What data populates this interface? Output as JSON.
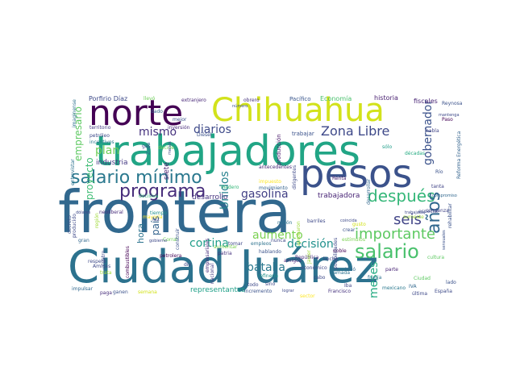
{
  "word_cloud": {
    "words": [
      {
        "text": "frontera",
        "color": "#31688e"
      },
      {
        "text": "Ciudad Juárez",
        "color": "#2c728e"
      },
      {
        "text": "trabajadores",
        "color": "#21a585"
      },
      {
        "text": "pesos",
        "color": "#3b528b"
      },
      {
        "text": "norte",
        "color": "#440154"
      },
      {
        "text": "Chihuahua",
        "color": "#d2e21b"
      },
      {
        "text": "salario mínimo",
        "color": "#2a788e"
      },
      {
        "text": "programa",
        "color": "#472d7b"
      },
      {
        "text": "salario",
        "color": "#4ac16d"
      },
      {
        "text": "después",
        "color": "#35b779"
      },
      {
        "text": "años",
        "color": "#31688e"
      },
      {
        "text": "Zona Libre",
        "color": "#3e4989"
      },
      {
        "text": "seis",
        "color": "#414487"
      },
      {
        "text": "importante",
        "color": "#5ec962"
      },
      {
        "text": "gobernador",
        "color": "#3b528b"
      },
      {
        "text": "plan",
        "color": "#6ece58"
      },
      {
        "text": "diarios",
        "color": "#3e4a89"
      },
      {
        "text": "mismo",
        "color": "#46327e"
      },
      {
        "text": "Unidos",
        "color": "#26828e"
      },
      {
        "text": "cortina",
        "color": "#1f9e89"
      },
      {
        "text": "gasolina",
        "color": "#424086"
      },
      {
        "text": "aumento",
        "color": "#7ad151"
      },
      {
        "text": "decisión",
        "color": "#21918c"
      },
      {
        "text": "batalla",
        "color": "#2a788e"
      },
      {
        "text": "meses",
        "color": "#25ab82"
      },
      {
        "text": "empresario",
        "color": "#5ec962"
      },
      {
        "text": "proyecto",
        "color": "#3dbc74"
      },
      {
        "text": "industria",
        "color": "#443983"
      },
      {
        "text": "hora",
        "color": "#2c738e"
      },
      {
        "text": "país",
        "color": "#33638d"
      },
      {
        "text": "siete",
        "color": "#481c6e"
      },
      {
        "text": "trabajadora",
        "color": "#482576"
      },
      {
        "text": "desarrollo",
        "color": "#463480"
      },
      {
        "text": "representantes",
        "color": "#1fa088"
      },
      {
        "text": "Porfirio Díaz",
        "color": "#3e4a89"
      },
      {
        "text": "llevó",
        "color": "#6ece58"
      },
      {
        "text": "extranjero",
        "color": "#482878"
      },
      {
        "text": "obrero",
        "color": "#46327e"
      },
      {
        "text": "Pacífico",
        "color": "#39568c"
      },
      {
        "text": "Economía",
        "color": "#4ac16d"
      },
      {
        "text": "historia",
        "color": "#481f70"
      },
      {
        "text": "fiscales",
        "color": "#482475"
      },
      {
        "text": "Reynosa",
        "color": "#3b528b"
      },
      {
        "text": "Paso",
        "color": "#440154"
      },
      {
        "text": "habla",
        "color": "#414487"
      },
      {
        "text": "imaginense",
        "color": "#2d708e"
      },
      {
        "text": "territorio",
        "color": "#443a83"
      },
      {
        "text": "inversión",
        "color": "#472a7a"
      },
      {
        "text": "Diésel",
        "color": "#3b528b"
      },
      {
        "text": "incentivos",
        "color": "#2a788e"
      },
      {
        "text": "petróleo",
        "color": "#3e4989"
      },
      {
        "text": "entrevistar",
        "color": "#2c728e"
      },
      {
        "text": "producción",
        "color": "#48186a"
      },
      {
        "text": "antecedentes",
        "color": "#482878"
      },
      {
        "text": "trabajar",
        "color": "#3b528b"
      },
      {
        "text": "comienza",
        "color": "#414487"
      },
      {
        "text": "desarrollar",
        "color": "#31688e"
      },
      {
        "text": "Reforma Energética",
        "color": "#33638d"
      },
      {
        "text": "décadas",
        "color": "#25ab82"
      },
      {
        "text": "sólo",
        "color": "#1f9e89"
      },
      {
        "text": "especial",
        "color": "#3e4989"
      },
      {
        "text": "tanta",
        "color": "#414487"
      },
      {
        "text": "República",
        "color": "#472d7b"
      },
      {
        "text": "económico",
        "color": "#3e4989"
      },
      {
        "text": "cultura",
        "color": "#5ec962"
      },
      {
        "text": "gusto",
        "color": "#d2e21b"
      },
      {
        "text": "crear",
        "color": "#3b528b"
      },
      {
        "text": "suroeste",
        "color": "#a0da39"
      },
      {
        "text": "estímulos",
        "color": "#7ad151"
      },
      {
        "text": "Renta",
        "color": "#481f70"
      },
      {
        "text": "impuesto",
        "color": "#fde725"
      },
      {
        "text": "Madero",
        "color": "#35b779"
      },
      {
        "text": "movimiento",
        "color": "#33638d"
      },
      {
        "text": "dirigentes",
        "color": "#3e4989"
      },
      {
        "text": "aprobaron",
        "color": "#a0da39"
      },
      {
        "text": "millón",
        "color": "#2c728e"
      },
      {
        "text": "tocó",
        "color": "#31688e"
      },
      {
        "text": "hecho",
        "color": "#3e4989"
      },
      {
        "text": "llamada",
        "color": "#2c728e"
      },
      {
        "text": "doble",
        "color": "#440154"
      },
      {
        "text": "Iba",
        "color": "#414487"
      },
      {
        "text": "parte",
        "color": "#482475"
      },
      {
        "text": "Ciudad",
        "color": "#5ec962"
      },
      {
        "text": "franja",
        "color": "#2c728e"
      },
      {
        "text": "lado",
        "color": "#3b528b"
      },
      {
        "text": "España",
        "color": "#3e4a89"
      },
      {
        "text": "última",
        "color": "#3e4989"
      },
      {
        "text": "mexicano",
        "color": "#2a788e"
      },
      {
        "text": "Francisco",
        "color": "#46327e"
      },
      {
        "text": "sector",
        "color": "#fde725"
      },
      {
        "text": "incremento",
        "color": "#3b528b"
      },
      {
        "text": "refinería",
        "color": "#20928c"
      },
      {
        "text": "amigos",
        "color": "#482878"
      },
      {
        "text": "empleos",
        "color": "#2c728e"
      },
      {
        "text": "tomar",
        "color": "#3e4989"
      },
      {
        "text": "nacional",
        "color": "#443983"
      },
      {
        "text": "patria",
        "color": "#46327e"
      },
      {
        "text": "aumentar",
        "color": "#7ad151"
      },
      {
        "text": "Corral",
        "color": "#6ece58"
      },
      {
        "text": "petrolera",
        "color": "#440154"
      },
      {
        "text": "mayoría",
        "color": "#fde725"
      },
      {
        "text": "tiempo",
        "color": "#21918c"
      },
      {
        "text": "luz",
        "color": "#3e4989"
      },
      {
        "text": "decreto",
        "color": "#3b528b"
      },
      {
        "text": "región",
        "color": "#a0da39"
      },
      {
        "text": "respeto",
        "color": "#3e4989"
      },
      {
        "text": "Amigas",
        "color": "#3e4989"
      },
      {
        "text": "trata",
        "color": "#a0da39"
      },
      {
        "text": "impulsar",
        "color": "#31688e"
      },
      {
        "text": "paga",
        "color": "#472d7b"
      },
      {
        "text": "ganen",
        "color": "#3b528b"
      },
      {
        "text": "semana",
        "color": "#d2e21b"
      },
      {
        "text": "gran",
        "color": "#31688e"
      },
      {
        "text": "cuatro",
        "color": "#3e4989"
      },
      {
        "text": "combustibles",
        "color": "#440154"
      },
      {
        "text": "construir",
        "color": "#3b528b"
      },
      {
        "text": "empresariales",
        "color": "#472d7b"
      },
      {
        "text": "hablando",
        "color": "#3b528b"
      },
      {
        "text": "nunca",
        "color": "#3e4989"
      },
      {
        "text": "cabo",
        "color": "#3e4989"
      },
      {
        "text": "IVA",
        "color": "#31688e"
      },
      {
        "text": "Río",
        "color": "#3b528b"
      },
      {
        "text": "decide",
        "color": "#6ece58"
      },
      {
        "text": "gas",
        "color": "#3e4989"
      },
      {
        "text": "dado",
        "color": "#31688e"
      },
      {
        "text": "mejor",
        "color": "#3b528b"
      },
      {
        "text": "decisiva",
        "color": "#35b779"
      },
      {
        "text": "Javier",
        "color": "#a0da39"
      },
      {
        "text": "producido",
        "color": "#3e4989"
      },
      {
        "text": "dólares",
        "color": "#3e4989"
      },
      {
        "text": "neoliberal",
        "color": "#472d7b"
      },
      {
        "text": "posibilidades",
        "color": "#3e4989"
      },
      {
        "text": "Zona",
        "color": "#31688e"
      },
      {
        "text": "menos",
        "color": "#3e4989"
      },
      {
        "text": "mantenga",
        "color": "#3e4989"
      },
      {
        "text": "número",
        "color": "#3b528b"
      },
      {
        "text": "coincida",
        "color": "#3e4989"
      },
      {
        "text": "barriles",
        "color": "#3e4989"
      },
      {
        "text": "compromiso",
        "color": "#31688e"
      },
      {
        "text": "trabajador",
        "color": "#3e4989"
      },
      {
        "text": "rehabilitar",
        "color": "#3b528b"
      },
      {
        "text": "sensuales",
        "color": "#3b528b"
      },
      {
        "text": "sino",
        "color": "#3e4989"
      },
      {
        "text": "lograr",
        "color": "#3e4989"
      },
      {
        "text": "todo",
        "color": "#3e4989"
      },
      {
        "text": "dio",
        "color": "#3e4989"
      },
      {
        "text": "gobierno",
        "color": "#3e4989"
      }
    ]
  }
}
